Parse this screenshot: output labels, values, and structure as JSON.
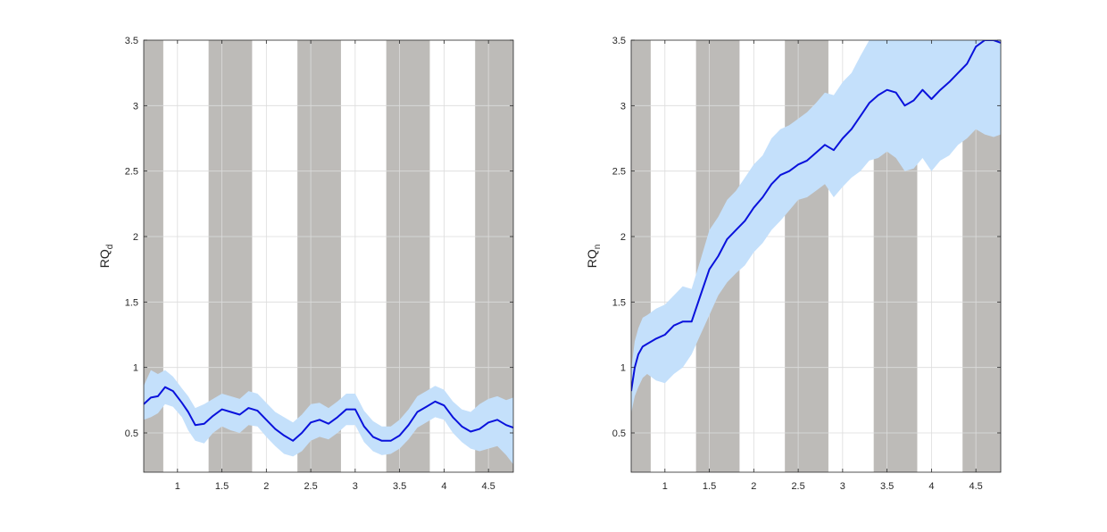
{
  "chart_data": [
    {
      "type": "line",
      "ylabel": "RQ",
      "ylabel_subscript": "d",
      "xlim": [
        0.62,
        4.78
      ],
      "ylim": [
        0.2,
        3.5
      ],
      "xticks": [
        1,
        1.5,
        2,
        2.5,
        3,
        3.5,
        4,
        4.5
      ],
      "xtick_labels": [
        "1",
        "1.5",
        "2",
        "2.5",
        "3",
        "3.5",
        "4",
        "4.5"
      ],
      "yticks": [
        0.5,
        1,
        1.5,
        2,
        2.5,
        3,
        3.5
      ],
      "ytick_labels": [
        "0.5",
        "1",
        "1.5",
        "2",
        "2.5",
        "3",
        "3.5"
      ],
      "grid": true,
      "shaded_intervals": [
        [
          0.62,
          0.84
        ],
        [
          1.35,
          1.84
        ],
        [
          2.35,
          2.84
        ],
        [
          3.35,
          3.84
        ],
        [
          4.35,
          4.78
        ]
      ],
      "series": [
        {
          "role": "mean",
          "x": [
            0.62,
            0.7,
            0.78,
            0.86,
            0.95,
            1.05,
            1.12,
            1.2,
            1.3,
            1.4,
            1.5,
            1.6,
            1.7,
            1.8,
            1.9,
            2.0,
            2.1,
            2.2,
            2.3,
            2.4,
            2.5,
            2.6,
            2.7,
            2.8,
            2.9,
            3.0,
            3.1,
            3.2,
            3.3,
            3.4,
            3.5,
            3.6,
            3.7,
            3.8,
            3.9,
            4.0,
            4.1,
            4.2,
            4.3,
            4.4,
            4.5,
            4.6,
            4.7,
            4.78
          ],
          "y": [
            0.72,
            0.77,
            0.78,
            0.85,
            0.82,
            0.73,
            0.66,
            0.56,
            0.57,
            0.63,
            0.68,
            0.66,
            0.64,
            0.69,
            0.67,
            0.6,
            0.53,
            0.48,
            0.44,
            0.5,
            0.58,
            0.6,
            0.57,
            0.62,
            0.68,
            0.68,
            0.55,
            0.47,
            0.44,
            0.44,
            0.48,
            0.56,
            0.66,
            0.7,
            0.74,
            0.71,
            0.62,
            0.55,
            0.51,
            0.53,
            0.58,
            0.6,
            0.56,
            0.54
          ]
        },
        {
          "role": "band",
          "x": [
            0.62,
            0.7,
            0.78,
            0.86,
            0.95,
            1.05,
            1.12,
            1.2,
            1.3,
            1.4,
            1.5,
            1.6,
            1.7,
            1.8,
            1.9,
            2.0,
            2.1,
            2.2,
            2.3,
            2.4,
            2.5,
            2.6,
            2.7,
            2.8,
            2.9,
            3.0,
            3.1,
            3.2,
            3.3,
            3.4,
            3.5,
            3.6,
            3.7,
            3.8,
            3.9,
            4.0,
            4.1,
            4.2,
            4.3,
            4.4,
            4.5,
            4.6,
            4.7,
            4.78
          ],
          "lower": [
            0.6,
            0.62,
            0.65,
            0.72,
            0.7,
            0.62,
            0.52,
            0.44,
            0.42,
            0.5,
            0.55,
            0.52,
            0.5,
            0.56,
            0.55,
            0.47,
            0.4,
            0.34,
            0.32,
            0.36,
            0.44,
            0.47,
            0.45,
            0.5,
            0.56,
            0.56,
            0.43,
            0.36,
            0.33,
            0.34,
            0.38,
            0.45,
            0.54,
            0.58,
            0.62,
            0.6,
            0.5,
            0.43,
            0.38,
            0.36,
            0.38,
            0.4,
            0.33,
            0.26
          ],
          "upper": [
            0.86,
            0.98,
            0.95,
            0.98,
            0.93,
            0.84,
            0.78,
            0.69,
            0.72,
            0.76,
            0.8,
            0.78,
            0.76,
            0.82,
            0.8,
            0.73,
            0.66,
            0.62,
            0.58,
            0.64,
            0.72,
            0.73,
            0.69,
            0.74,
            0.8,
            0.8,
            0.67,
            0.59,
            0.55,
            0.55,
            0.6,
            0.68,
            0.78,
            0.82,
            0.86,
            0.83,
            0.74,
            0.68,
            0.66,
            0.72,
            0.76,
            0.78,
            0.75,
            0.77
          ]
        }
      ]
    },
    {
      "type": "line",
      "ylabel": "RQ",
      "ylabel_subscript": "n",
      "xlim": [
        0.62,
        4.78
      ],
      "ylim": [
        0.2,
        3.5
      ],
      "xticks": [
        1,
        1.5,
        2,
        2.5,
        3,
        3.5,
        4,
        4.5
      ],
      "xtick_labels": [
        "1",
        "1.5",
        "2",
        "2.5",
        "3",
        "3.5",
        "4",
        "4.5"
      ],
      "yticks": [
        0.5,
        1,
        1.5,
        2,
        2.5,
        3,
        3.5
      ],
      "ytick_labels": [
        "0.5",
        "1",
        "1.5",
        "2",
        "2.5",
        "3",
        "3.5"
      ],
      "grid": true,
      "shaded_intervals": [
        [
          0.62,
          0.84
        ],
        [
          1.35,
          1.84
        ],
        [
          2.35,
          2.84
        ],
        [
          3.35,
          3.84
        ],
        [
          4.35,
          4.78
        ]
      ],
      "series": [
        {
          "role": "mean",
          "x": [
            0.62,
            0.66,
            0.7,
            0.75,
            0.8,
            0.9,
            1.0,
            1.1,
            1.2,
            1.3,
            1.4,
            1.5,
            1.6,
            1.7,
            1.8,
            1.9,
            2.0,
            2.1,
            2.2,
            2.3,
            2.4,
            2.5,
            2.6,
            2.7,
            2.8,
            2.9,
            3.0,
            3.1,
            3.2,
            3.3,
            3.4,
            3.5,
            3.6,
            3.7,
            3.8,
            3.9,
            4.0,
            4.1,
            4.2,
            4.3,
            4.4,
            4.5,
            4.6,
            4.7,
            4.78
          ],
          "y": [
            0.82,
            1.0,
            1.1,
            1.16,
            1.18,
            1.22,
            1.25,
            1.32,
            1.35,
            1.35,
            1.55,
            1.75,
            1.85,
            1.98,
            2.05,
            2.12,
            2.22,
            2.3,
            2.4,
            2.47,
            2.5,
            2.55,
            2.58,
            2.64,
            2.7,
            2.66,
            2.75,
            2.82,
            2.92,
            3.02,
            3.08,
            3.12,
            3.1,
            3.0,
            3.04,
            3.12,
            3.05,
            3.12,
            3.18,
            3.25,
            3.32,
            3.45,
            3.5,
            3.5,
            3.48
          ]
        },
        {
          "role": "band",
          "x": [
            0.62,
            0.66,
            0.7,
            0.75,
            0.8,
            0.9,
            1.0,
            1.1,
            1.2,
            1.3,
            1.4,
            1.5,
            1.6,
            1.7,
            1.8,
            1.9,
            2.0,
            2.1,
            2.2,
            2.3,
            2.4,
            2.5,
            2.6,
            2.7,
            2.8,
            2.9,
            3.0,
            3.1,
            3.2,
            3.3,
            3.4,
            3.5,
            3.6,
            3.7,
            3.8,
            3.9,
            4.0,
            4.1,
            4.2,
            4.3,
            4.4,
            4.5,
            4.6,
            4.7,
            4.78
          ],
          "lower": [
            0.65,
            0.78,
            0.85,
            0.92,
            0.95,
            0.9,
            0.88,
            0.95,
            1.0,
            1.1,
            1.25,
            1.4,
            1.55,
            1.65,
            1.72,
            1.78,
            1.88,
            1.95,
            2.05,
            2.12,
            2.2,
            2.28,
            2.3,
            2.35,
            2.4,
            2.3,
            2.38,
            2.45,
            2.5,
            2.58,
            2.6,
            2.65,
            2.6,
            2.5,
            2.52,
            2.6,
            2.5,
            2.58,
            2.62,
            2.7,
            2.75,
            2.82,
            2.78,
            2.76,
            2.78
          ],
          "upper": [
            0.98,
            1.2,
            1.3,
            1.38,
            1.4,
            1.45,
            1.48,
            1.55,
            1.62,
            1.6,
            1.82,
            2.05,
            2.15,
            2.28,
            2.35,
            2.45,
            2.55,
            2.62,
            2.75,
            2.82,
            2.85,
            2.9,
            2.95,
            3.02,
            3.1,
            3.08,
            3.18,
            3.25,
            3.38,
            3.5,
            3.5,
            3.5,
            3.5,
            3.5,
            3.5,
            3.5,
            3.5,
            3.5,
            3.5,
            3.5,
            3.5,
            3.5,
            3.5,
            3.5,
            3.5
          ]
        }
      ]
    }
  ]
}
